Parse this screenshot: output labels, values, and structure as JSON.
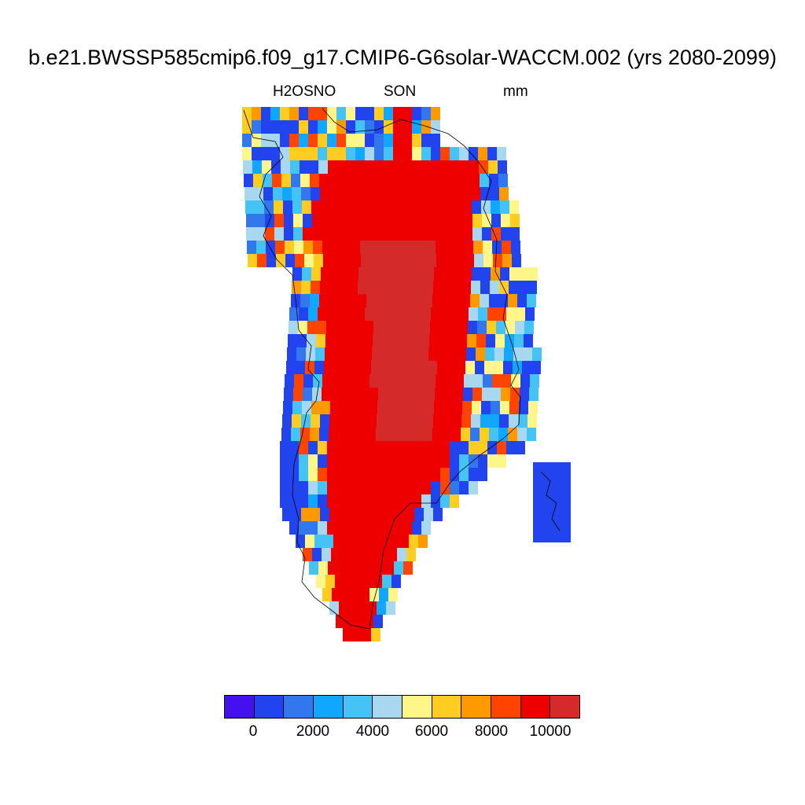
{
  "title": "b.e21.BWSSP585cmip6.f09_g17.CMIP6-G6solar-WACCM.002 (yrs 2080-2099)",
  "subtitle": {
    "variable": "H2OSNO",
    "season": "SON",
    "units": "mm"
  },
  "colorbar": {
    "colors": [
      "#4411ee",
      "#2244ee",
      "#3377ee",
      "#11a6ff",
      "#44c3f4",
      "#a8d8ef",
      "#fff68a",
      "#ffcc22",
      "#ff9900",
      "#ff4400",
      "#ee0000",
      "#d42a2a"
    ],
    "labels": [
      "0",
      "2000",
      "4000",
      "6000",
      "8000",
      "10000"
    ]
  },
  "map_data": {
    "region": "Greenland",
    "field": "H2OSNO",
    "interior_class": "> 10000",
    "margin_classes": [
      "1000",
      "2000",
      "5000",
      "6000",
      "8000",
      "9000"
    ]
  }
}
